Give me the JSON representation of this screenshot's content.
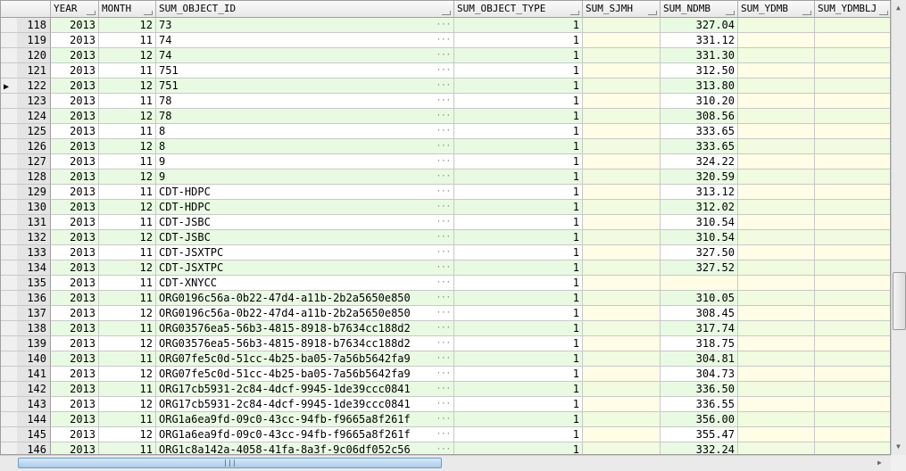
{
  "columns": [
    "YEAR",
    "MONTH",
    "SUM_OBJECT_ID",
    "SUM_OBJECT_TYPE",
    "SUM_SJMH",
    "SUM_NDMB",
    "SUM_YDMB",
    "SUM_YDMBLJ"
  ],
  "current_row": 122,
  "rows": [
    [
      "118",
      "2013",
      "12",
      "73",
      "1",
      "",
      "327.04",
      "",
      ""
    ],
    [
      "119",
      "2013",
      "11",
      "74",
      "1",
      "",
      "331.12",
      "",
      ""
    ],
    [
      "120",
      "2013",
      "12",
      "74",
      "1",
      "",
      "331.30",
      "",
      ""
    ],
    [
      "121",
      "2013",
      "11",
      "751",
      "1",
      "",
      "312.50",
      "",
      ""
    ],
    [
      "122",
      "2013",
      "12",
      "751",
      "1",
      "",
      "313.80",
      "",
      ""
    ],
    [
      "123",
      "2013",
      "11",
      "78",
      "1",
      "",
      "310.20",
      "",
      ""
    ],
    [
      "124",
      "2013",
      "12",
      "78",
      "1",
      "",
      "308.56",
      "",
      ""
    ],
    [
      "125",
      "2013",
      "11",
      "8",
      "1",
      "",
      "333.65",
      "",
      ""
    ],
    [
      "126",
      "2013",
      "12",
      "8",
      "1",
      "",
      "333.65",
      "",
      ""
    ],
    [
      "127",
      "2013",
      "11",
      "9",
      "1",
      "",
      "324.22",
      "",
      ""
    ],
    [
      "128",
      "2013",
      "12",
      "9",
      "1",
      "",
      "320.59",
      "",
      ""
    ],
    [
      "129",
      "2013",
      "11",
      "CDT-HDPC",
      "1",
      "",
      "313.12",
      "",
      ""
    ],
    [
      "130",
      "2013",
      "12",
      "CDT-HDPC",
      "1",
      "",
      "312.02",
      "",
      ""
    ],
    [
      "131",
      "2013",
      "11",
      "CDT-JSBC",
      "1",
      "",
      "310.54",
      "",
      ""
    ],
    [
      "132",
      "2013",
      "12",
      "CDT-JSBC",
      "1",
      "",
      "310.54",
      "",
      ""
    ],
    [
      "133",
      "2013",
      "11",
      "CDT-JSXTPC",
      "1",
      "",
      "327.50",
      "",
      ""
    ],
    [
      "134",
      "2013",
      "12",
      "CDT-JSXTPC",
      "1",
      "",
      "327.52",
      "",
      ""
    ],
    [
      "135",
      "2013",
      "11",
      "CDT-XNYCC",
      "1",
      "",
      "",
      "",
      ""
    ],
    [
      "136",
      "2013",
      "11",
      "ORG0196c56a-0b22-47d4-a11b-2b2a5650e850",
      "1",
      "",
      "310.05",
      "",
      ""
    ],
    [
      "137",
      "2013",
      "12",
      "ORG0196c56a-0b22-47d4-a11b-2b2a5650e850",
      "1",
      "",
      "308.45",
      "",
      ""
    ],
    [
      "138",
      "2013",
      "11",
      "ORG03576ea5-56b3-4815-8918-b7634cc188d2",
      "1",
      "",
      "317.74",
      "",
      ""
    ],
    [
      "139",
      "2013",
      "12",
      "ORG03576ea5-56b3-4815-8918-b7634cc188d2",
      "1",
      "",
      "318.75",
      "",
      ""
    ],
    [
      "140",
      "2013",
      "11",
      "ORG07fe5c0d-51cc-4b25-ba05-7a56b5642fa9",
      "1",
      "",
      "304.81",
      "",
      ""
    ],
    [
      "141",
      "2013",
      "12",
      "ORG07fe5c0d-51cc-4b25-ba05-7a56b5642fa9",
      "1",
      "",
      "304.73",
      "",
      ""
    ],
    [
      "142",
      "2013",
      "11",
      "ORG17cb5931-2c84-4dcf-9945-1de39ccc0841",
      "1",
      "",
      "336.50",
      "",
      ""
    ],
    [
      "143",
      "2013",
      "12",
      "ORG17cb5931-2c84-4dcf-9945-1de39ccc0841",
      "1",
      "",
      "336.55",
      "",
      ""
    ],
    [
      "144",
      "2013",
      "11",
      "ORG1a6ea9fd-09c0-43cc-94fb-f9665a8f261f",
      "1",
      "",
      "356.00",
      "",
      ""
    ],
    [
      "145",
      "2013",
      "12",
      "ORG1a6ea9fd-09c0-43cc-94fb-f9665a8f261f",
      "1",
      "",
      "355.47",
      "",
      ""
    ],
    [
      "146",
      "2013",
      "11",
      "ORG1c8a142a-4058-41fa-8a3f-9c06df052c56",
      "1",
      "",
      "332.24",
      "",
      ""
    ]
  ],
  "icons": {
    "current_row": "row-pointer-icon",
    "cell_edit": "ellipsis-icon",
    "scroll_up": "arrow-up-icon",
    "scroll_down": "arrow-down-icon",
    "scroll_right": "arrow-right-icon",
    "grip": "grip-icon"
  },
  "colors": {
    "alt_row": "#e8fbe2",
    "null_cell": "#fffde6",
    "scroll_thumb": "#a9cbe8"
  }
}
